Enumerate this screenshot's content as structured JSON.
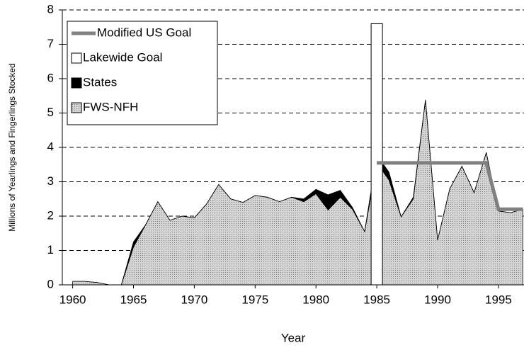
{
  "chart_data": {
    "type": "area",
    "x_label": "Year",
    "y_label": "Millions of Yearlings and Fingerlings Stocked",
    "x": [
      1960,
      1961,
      1962,
      1963,
      1964,
      1965,
      1966,
      1967,
      1968,
      1969,
      1970,
      1971,
      1972,
      1973,
      1974,
      1975,
      1976,
      1977,
      1978,
      1979,
      1980,
      1981,
      1982,
      1983,
      1984,
      1985,
      1986,
      1987,
      1988,
      1989,
      1990,
      1991,
      1992,
      1993,
      1994,
      1995,
      1996,
      1997
    ],
    "series": [
      {
        "name": "FWS-NFH",
        "color": "#c8c8c8",
        "values": [
          0.1,
          0.1,
          0.07,
          0,
          0,
          1.1,
          1.75,
          2.42,
          1.88,
          2.0,
          1.95,
          2.35,
          2.92,
          2.5,
          2.4,
          2.6,
          2.55,
          2.42,
          2.55,
          2.42,
          2.65,
          2.18,
          2.55,
          2.2,
          1.55,
          3.55,
          3.05,
          1.98,
          2.5,
          5.38,
          1.3,
          2.8,
          3.45,
          2.68,
          3.85,
          2.15,
          2.1,
          2.2
        ]
      },
      {
        "name": "States",
        "color": "#000000",
        "values": [
          0,
          0,
          0,
          0,
          0,
          0.15,
          0,
          0,
          0,
          0,
          0,
          0,
          0,
          0,
          0,
          0,
          0,
          0,
          0,
          0.08,
          0.13,
          0.44,
          0.2,
          0.05,
          0,
          0.23,
          0.23,
          0,
          0.05,
          0,
          0,
          0,
          0,
          0,
          0,
          0,
          0,
          0
        ]
      },
      {
        "name": "Lakewide Goal",
        "type": "bar",
        "color": "#ffffff",
        "x": [
          1985
        ],
        "values": [
          7.6
        ]
      },
      {
        "name": "Modified US Goal",
        "type": "line",
        "color": "#808080",
        "x": [
          1985,
          1986,
          1987,
          1988,
          1989,
          1990,
          1991,
          1992,
          1993,
          1994,
          1995,
          1996,
          1997
        ],
        "values": [
          3.55,
          3.55,
          3.55,
          3.55,
          3.55,
          3.55,
          3.55,
          3.55,
          3.55,
          3.55,
          2.2,
          2.2,
          2.2
        ]
      }
    ],
    "xlim": [
      1959.15,
      1997.1
    ],
    "xticks": [
      1960,
      1965,
      1970,
      1975,
      1980,
      1985,
      1990,
      1995
    ],
    "ylim": [
      0,
      8
    ],
    "yticks": [
      0,
      1,
      2,
      3,
      4,
      5,
      6,
      7,
      8
    ],
    "grid": true,
    "legend": "upper left"
  }
}
